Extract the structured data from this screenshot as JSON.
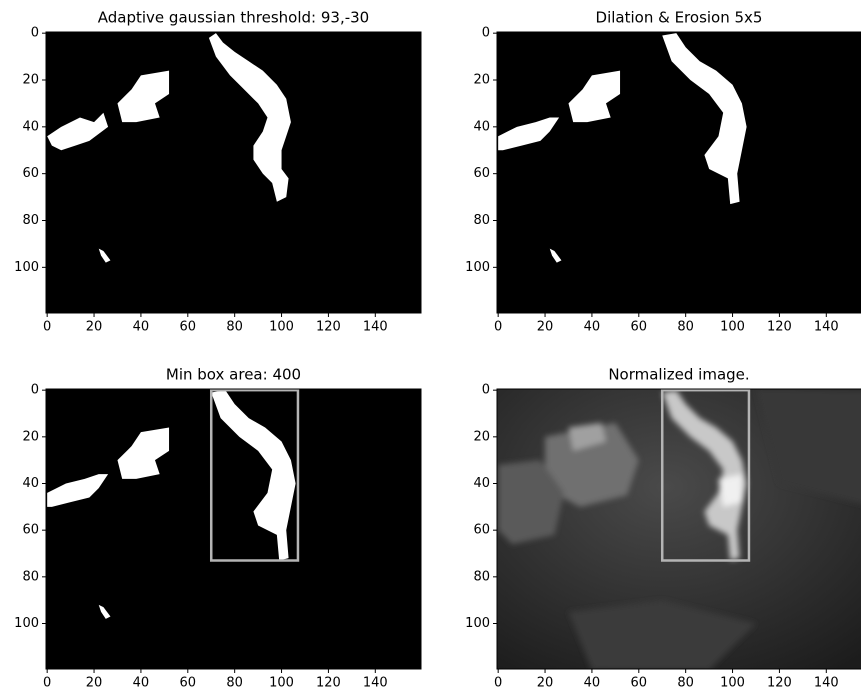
{
  "chart_data": [
    {
      "type": "image",
      "title": "Adaptive gaussian threshold: 93,-30",
      "mode": "binary",
      "xlim": [
        -0.5,
        159.5
      ],
      "ylim": [
        119.5,
        -0.5
      ],
      "xticks": [
        0,
        20,
        40,
        60,
        80,
        100,
        120,
        140
      ],
      "yticks": [
        0,
        20,
        40,
        60,
        80,
        100
      ]
    },
    {
      "type": "image",
      "title": "Dilation & Erosion 5x5",
      "mode": "binary",
      "xlim": [
        -0.5,
        159.5
      ],
      "ylim": [
        119.5,
        -0.5
      ],
      "xticks": [
        0,
        20,
        40,
        60,
        80,
        100,
        120,
        140
      ],
      "yticks": [
        0,
        20,
        40,
        60,
        80,
        100
      ]
    },
    {
      "type": "image",
      "title": "Min box area: 400",
      "mode": "binary",
      "xlim": [
        -0.5,
        159.5
      ],
      "ylim": [
        119.5,
        -0.5
      ],
      "xticks": [
        0,
        20,
        40,
        60,
        80,
        100,
        120,
        140
      ],
      "yticks": [
        0,
        20,
        40,
        60,
        80,
        100
      ],
      "box": {
        "x": [
          70,
          107
        ],
        "y": [
          0,
          73
        ],
        "color": "#b4b4b4"
      }
    },
    {
      "type": "image",
      "title": "Normalized image.",
      "mode": "gray",
      "xlim": [
        -0.5,
        159.5
      ],
      "ylim": [
        119.5,
        -0.5
      ],
      "xticks": [
        0,
        20,
        40,
        60,
        80,
        100,
        120,
        140
      ],
      "yticks": [
        0,
        20,
        40,
        60,
        80,
        100
      ],
      "box": {
        "x": [
          70,
          107
        ],
        "y": [
          0,
          73
        ],
        "color": "#b4b4b4"
      }
    }
  ]
}
